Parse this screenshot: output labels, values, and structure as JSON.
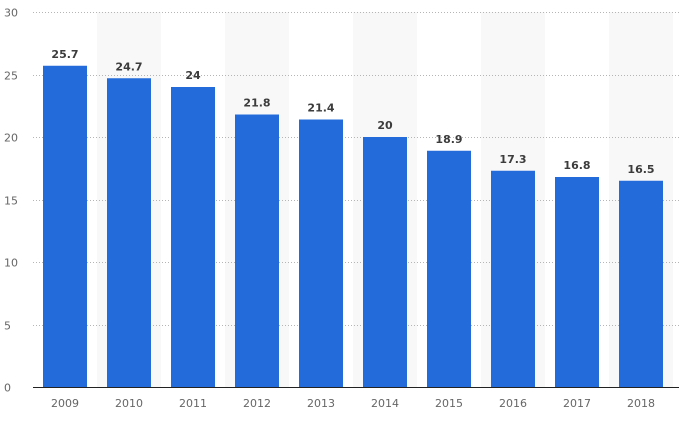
{
  "chart_data": {
    "type": "bar",
    "title": "",
    "xlabel": "",
    "ylabel": "",
    "categories": [
      "2009",
      "2010",
      "2011",
      "2012",
      "2013",
      "2014",
      "2015",
      "2016",
      "2017",
      "2018"
    ],
    "values": [
      25.7,
      24.7,
      24,
      21.8,
      21.4,
      20,
      18.9,
      17.3,
      16.8,
      16.5
    ],
    "value_labels": [
      "25.7",
      "24.7",
      "24",
      "21.8",
      "21.4",
      "20",
      "18.9",
      "17.3",
      "16.8",
      "16.5"
    ],
    "ylim": [
      0,
      30
    ],
    "yticks": [
      0,
      5,
      10,
      15,
      20,
      25,
      30
    ],
    "grid": true,
    "bar_color": "#236bdb",
    "band_color": "#f8f8f8"
  }
}
